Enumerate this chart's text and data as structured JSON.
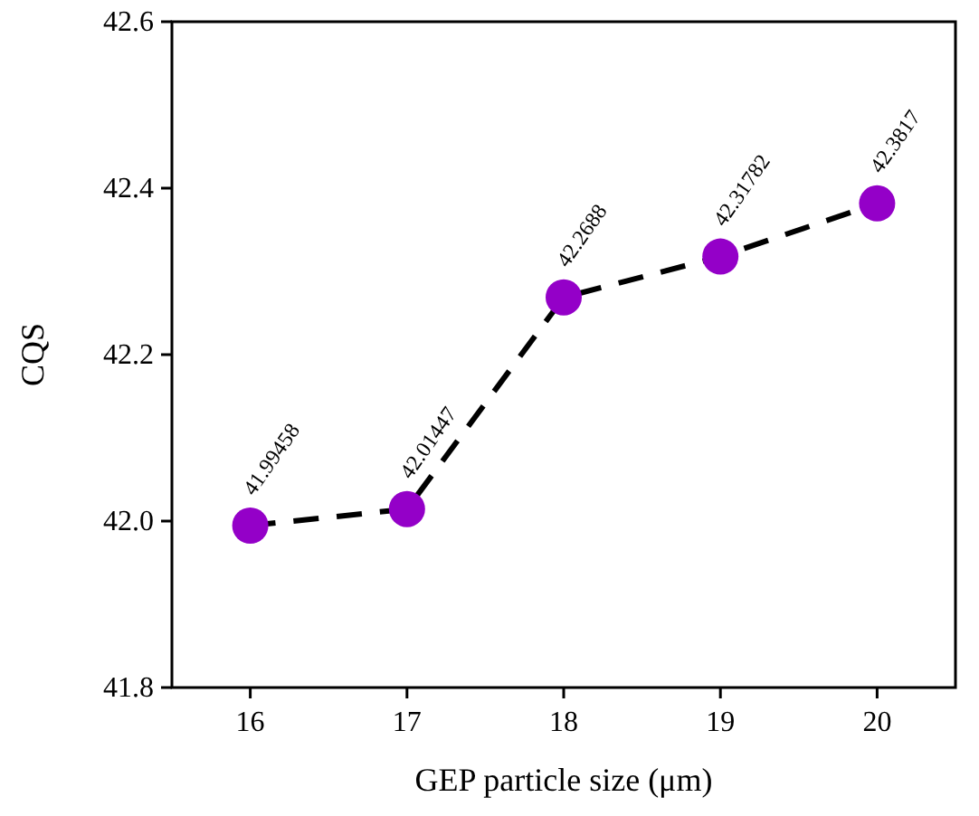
{
  "chart_data": {
    "type": "line",
    "xlabel": "GEP particle size (μm)",
    "ylabel": "CQS",
    "x": [
      16,
      17,
      18,
      19,
      20
    ],
    "series": [
      {
        "color": "#9400c8",
        "values": [
          41.99458,
          42.01447,
          42.2688,
          42.31782,
          42.3817
        ]
      }
    ],
    "xlim": [
      15.5,
      20.5
    ],
    "xticks": [
      16,
      17,
      18,
      19,
      20
    ],
    "ylim": [
      41.8,
      42.6
    ],
    "yticks": [
      {
        "value": 41.8,
        "label": "41.8"
      },
      {
        "value": 42.0,
        "label": "42.0"
      },
      {
        "value": 42.2,
        "label": "42.2"
      },
      {
        "value": 42.4,
        "label": "42.4"
      },
      {
        "value": 42.6,
        "label": "42.6"
      }
    ],
    "data_labels": true,
    "marker": "circle",
    "line_style": "dashed"
  }
}
